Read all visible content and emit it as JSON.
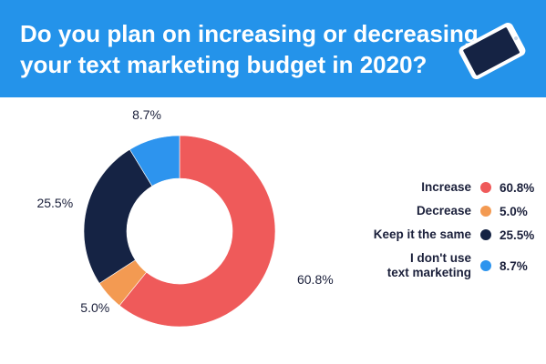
{
  "header": {
    "title_line1": "Do you plan on increasing or decreasing",
    "title_line2": "your text marketing budget in 2020?",
    "background_color": "#2493ea",
    "illustration_icon": "smartphone-icon"
  },
  "chart_data": {
    "type": "pie",
    "subtype": "donut",
    "title": "Do you plan on increasing or decreasing your text marketing budget in 2020?",
    "categories": [
      "Increase",
      "Decrease",
      "Keep it the same",
      "I don't use text marketing"
    ],
    "values": [
      60.8,
      5.0,
      25.5,
      8.7
    ],
    "value_labels": [
      "60.8%",
      "5.0%",
      "25.5%",
      "8.7%"
    ],
    "colors": [
      "#ef5a5a",
      "#f39a52",
      "#152344",
      "#2d94ee"
    ],
    "legend_placement": "right",
    "grid": false
  },
  "legend": {
    "items": [
      {
        "label_lines": [
          "Increase"
        ],
        "value": "60.8%",
        "color": "#ef5a5a"
      },
      {
        "label_lines": [
          "Decrease"
        ],
        "value": "5.0%",
        "color": "#f39a52"
      },
      {
        "label_lines": [
          "Keep it the same"
        ],
        "value": "25.5%",
        "color": "#152344"
      },
      {
        "label_lines": [
          "I don't use",
          "text marketing"
        ],
        "value": "8.7%",
        "color": "#2d94ee"
      }
    ]
  }
}
